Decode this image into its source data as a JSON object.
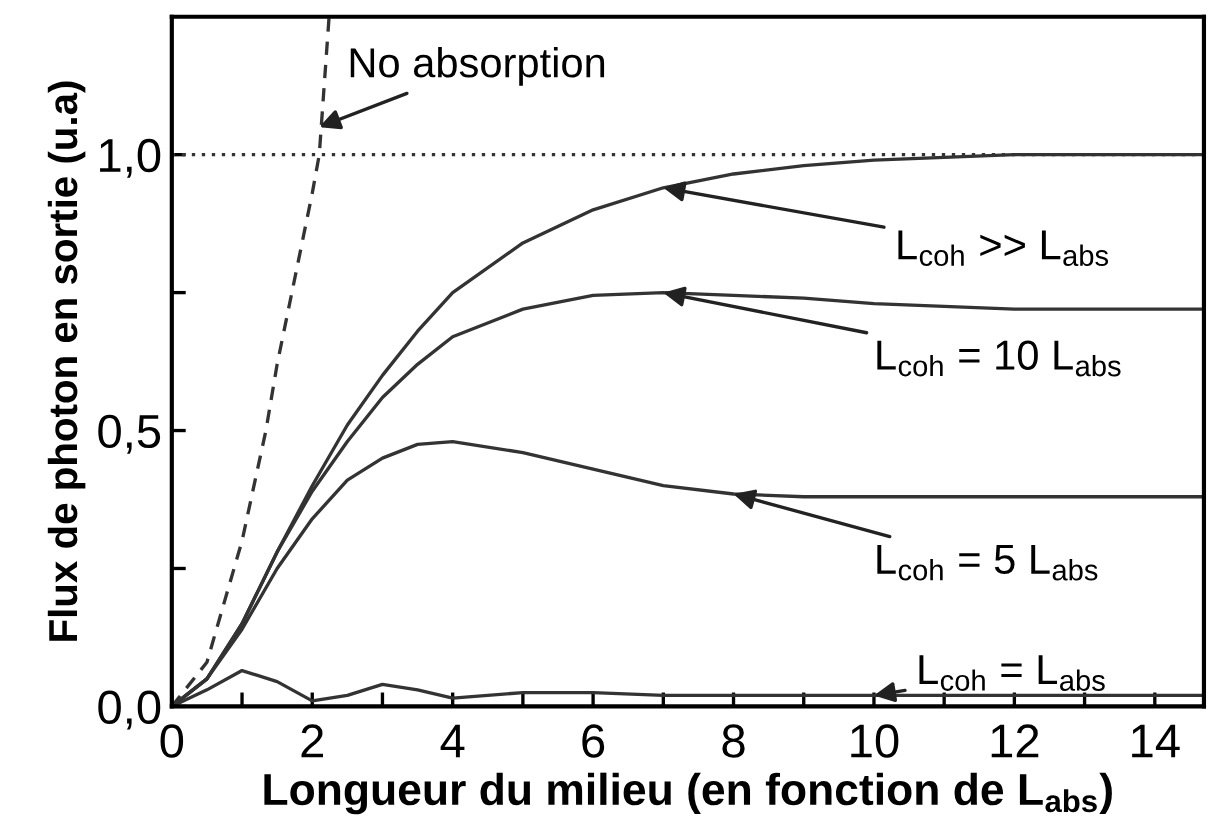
{
  "chart_data": {
    "type": "line",
    "xlabel": "Longueur du milieu (en fonction de L$_{abs}$)",
    "ylabel": "Flux de photon en sortie (u.a)",
    "xlim": [
      0,
      14.7
    ],
    "ylim": [
      0,
      1.25
    ],
    "xticks": [
      0,
      {
        "value": 1,
        "label": null
      },
      2,
      {
        "value": 3,
        "label": null
      },
      4,
      {
        "value": 5,
        "label": null
      },
      6,
      {
        "value": 7,
        "label": null
      },
      8,
      {
        "value": 9,
        "label": null
      },
      10,
      {
        "value": 11,
        "label": null
      },
      12,
      {
        "value": 13,
        "label": null
      },
      14
    ],
    "yticks": [
      {
        "value": 0,
        "label": "0,0"
      },
      {
        "value": 0.25,
        "label": null
      },
      {
        "value": 0.5,
        "label": "0,5"
      },
      {
        "value": 0.75,
        "label": null
      },
      {
        "value": 1.0,
        "label": "1,0"
      }
    ],
    "grid": false,
    "legend": false,
    "marker": "none",
    "series": [
      {
        "color": "#333333",
        "line_style": "dashed",
        "x": [
          0,
          0.5,
          1,
          1.34,
          1.5,
          2,
          2.1,
          2.24
        ],
        "values": [
          0,
          0.08,
          0.3,
          0.5,
          0.62,
          0.93,
          1.0,
          1.25
        ]
      },
      {
        "color": "#333333",
        "line_style": "solid",
        "x": [
          0,
          0.5,
          1,
          1.5,
          2,
          2.5,
          3,
          3.5,
          4,
          5,
          6,
          7,
          8,
          9,
          10,
          11,
          12,
          14,
          14.7
        ],
        "values": [
          0,
          0.05,
          0.15,
          0.28,
          0.4,
          0.51,
          0.6,
          0.68,
          0.75,
          0.84,
          0.9,
          0.94,
          0.965,
          0.98,
          0.99,
          0.995,
          1.0,
          1.0,
          1.0
        ]
      },
      {
        "color": "#333333",
        "line_style": "solid",
        "x": [
          0,
          0.5,
          1,
          1.5,
          2,
          2.5,
          3,
          3.5,
          4,
          5,
          6,
          7,
          8,
          9,
          10,
          11,
          12,
          14,
          14.7
        ],
        "values": [
          0,
          0.05,
          0.15,
          0.28,
          0.39,
          0.48,
          0.56,
          0.62,
          0.67,
          0.72,
          0.745,
          0.75,
          0.745,
          0.74,
          0.73,
          0.725,
          0.72,
          0.72,
          0.72
        ]
      },
      {
        "color": "#333333",
        "line_style": "solid",
        "x": [
          0,
          0.5,
          1,
          1.5,
          2,
          2.5,
          3,
          3.5,
          4,
          5,
          6,
          7,
          8,
          9,
          10,
          11,
          12,
          14,
          14.7
        ],
        "values": [
          0,
          0.05,
          0.14,
          0.25,
          0.34,
          0.41,
          0.45,
          0.475,
          0.48,
          0.46,
          0.43,
          0.4,
          0.385,
          0.38,
          0.38,
          0.38,
          0.38,
          0.38,
          0.38
        ]
      },
      {
        "color": "#333333",
        "line_style": "solid",
        "x": [
          0,
          0.5,
          1,
          1.5,
          2,
          2.5,
          3,
          3.5,
          4,
          5,
          6,
          7,
          8,
          10,
          12,
          14,
          14.7
        ],
        "values": [
          0,
          0.03,
          0.065,
          0.045,
          0.01,
          0.02,
          0.04,
          0.03,
          0.015,
          0.025,
          0.025,
          0.02,
          0.02,
          0.02,
          0.02,
          0.02,
          0.02
        ]
      }
    ],
    "ref_lines": [
      {
        "axis": "y",
        "value": 1.0,
        "label": null,
        "color": "#333333",
        "line_style": "dotted"
      }
    ],
    "annotations": [
      {
        "text": "No absorption",
        "x": 2.1,
        "y": 1.05
      },
      {
        "text": "L$_{coh}$ >> L$_{abs}$",
        "x": 7,
        "y": 0.94
      },
      {
        "text": "L$_{coh}$ = 10 L$_{abs}$",
        "x": 7,
        "y": 0.75
      },
      {
        "text": "L$_{coh}$ = 5 L$_{abs}$",
        "x": 8,
        "y": 0.385
      },
      {
        "text": "L$_{coh}$ = L$_{abs}$",
        "x": 10,
        "y": 0.02
      }
    ]
  }
}
